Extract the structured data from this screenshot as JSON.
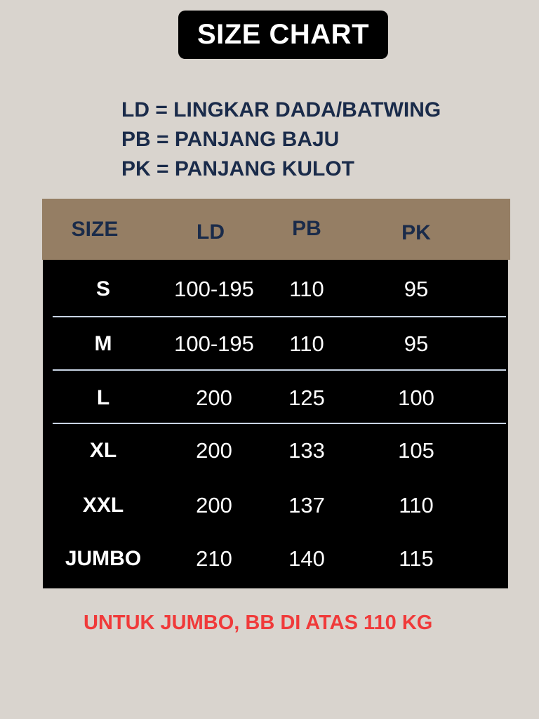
{
  "title": "SIZE CHART",
  "legend": [
    "LD = LINGKAR DADA/BATWING",
    "PB = PANJANG BAJU",
    "PK = PANJANG KULOT"
  ],
  "table": {
    "headers": [
      "SIZE",
      "LD",
      "PB",
      "PK"
    ],
    "rows": [
      [
        "S",
        "100-195",
        "110",
        "95"
      ],
      [
        "M",
        "100-195",
        "110",
        "95"
      ],
      [
        "L",
        "200",
        "125",
        "100"
      ],
      [
        "XL",
        "200",
        "133",
        "105"
      ],
      [
        "XXL",
        "200",
        "137",
        "110"
      ],
      [
        "JUMBO",
        "210",
        "140",
        "115"
      ]
    ]
  },
  "note": "UNTUK JUMBO, BB DI ATAS 110 KG",
  "colors": {
    "background": "#d9d4ce",
    "header": "#957e64",
    "table": "#000000",
    "header_text": "#1a2b4a",
    "note": "#f03a3a"
  }
}
